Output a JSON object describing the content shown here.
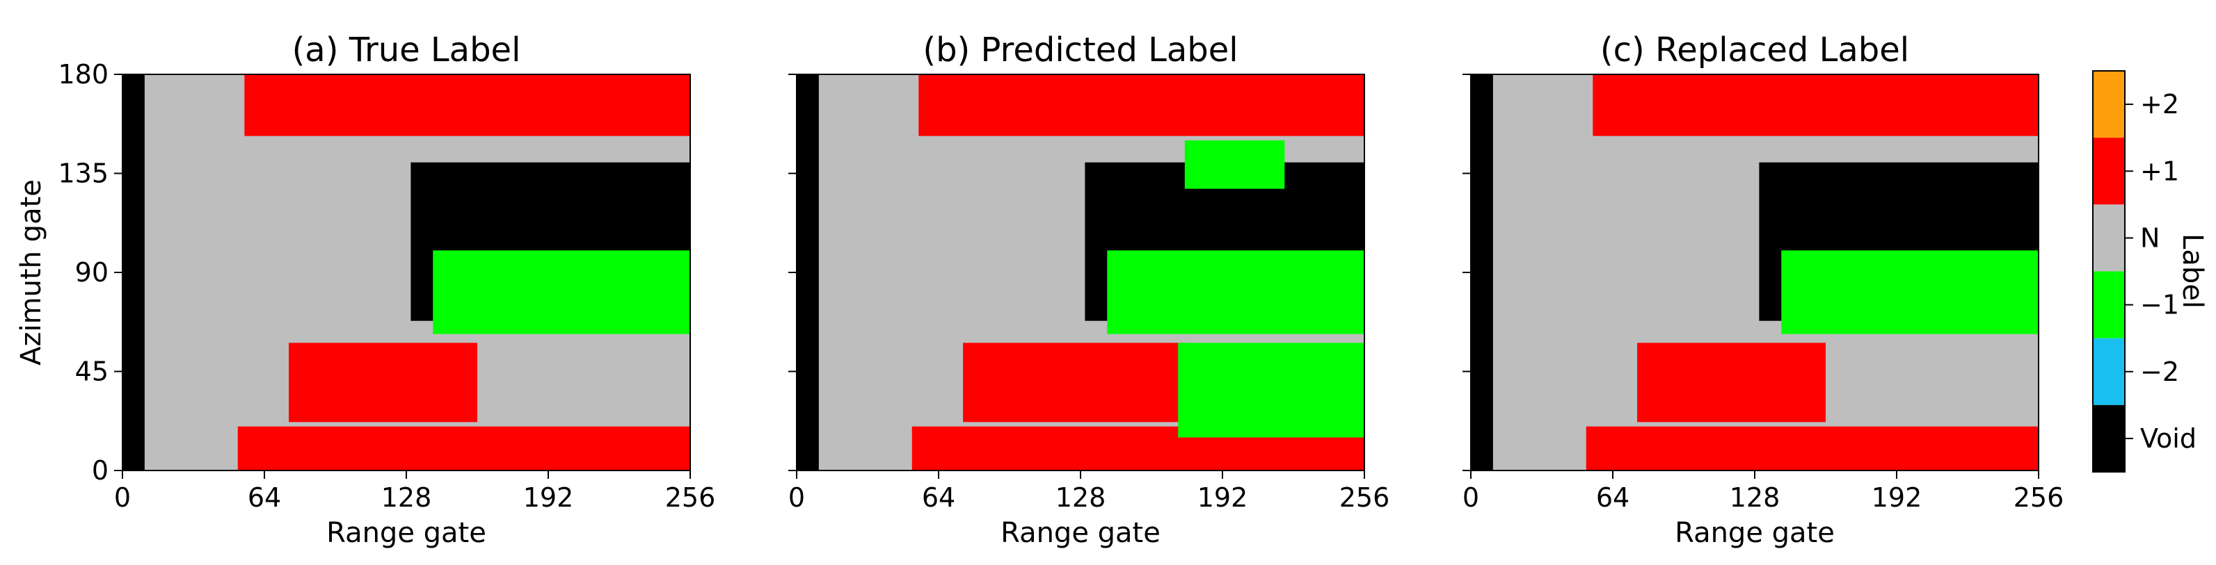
{
  "chart_data": [
    {
      "type": "heatmap",
      "title": "(a) True Label",
      "xlabel": "Range gate",
      "ylabel": "Azimuth gate",
      "xlim": [
        0,
        256
      ],
      "ylim": [
        0,
        180
      ],
      "xticks": [
        0,
        64,
        128,
        192,
        256
      ],
      "yticks": [
        0,
        45,
        90,
        135,
        180
      ],
      "regions": [
        {
          "label": "N",
          "desc": "background",
          "x": [
            0,
            256
          ],
          "y": [
            0,
            180
          ]
        },
        {
          "label": "+1",
          "x": [
            52,
            256
          ],
          "y": [
            0,
            20
          ]
        },
        {
          "label": "+1",
          "x": [
            75,
            160
          ],
          "y": [
            22,
            58
          ]
        },
        {
          "label": "+1",
          "x": [
            55,
            256
          ],
          "y": [
            152,
            180
          ]
        },
        {
          "label": "Void",
          "x": [
            0,
            10
          ],
          "y": [
            0,
            180
          ]
        },
        {
          "label": "Void",
          "x": [
            130,
            256
          ],
          "y": [
            68,
            140
          ]
        },
        {
          "label": "-1",
          "x": [
            140,
            256
          ],
          "y": [
            62,
            100
          ]
        }
      ]
    },
    {
      "type": "heatmap",
      "title": "(b) Predicted Label",
      "xlabel": "Range gate",
      "ylabel": "",
      "xlim": [
        0,
        256
      ],
      "ylim": [
        0,
        180
      ],
      "xticks": [
        0,
        64,
        128,
        192,
        256
      ],
      "yticks": [
        0,
        45,
        90,
        135,
        180
      ],
      "regions": [
        {
          "label": "N",
          "x": [
            0,
            256
          ],
          "y": [
            0,
            180
          ]
        },
        {
          "label": "+1",
          "x": [
            52,
            256
          ],
          "y": [
            0,
            20
          ]
        },
        {
          "label": "+1",
          "x": [
            75,
            175
          ],
          "y": [
            22,
            58
          ]
        },
        {
          "label": "+1",
          "x": [
            55,
            256
          ],
          "y": [
            152,
            180
          ]
        },
        {
          "label": "Void",
          "x": [
            0,
            10
          ],
          "y": [
            0,
            180
          ]
        },
        {
          "label": "Void",
          "x": [
            130,
            256
          ],
          "y": [
            68,
            140
          ]
        },
        {
          "label": "-1",
          "x": [
            172,
            256
          ],
          "y": [
            15,
            58
          ]
        },
        {
          "label": "-1",
          "x": [
            175,
            220
          ],
          "y": [
            128,
            150
          ]
        },
        {
          "label": "-1",
          "x": [
            140,
            256
          ],
          "y": [
            62,
            100
          ]
        }
      ]
    },
    {
      "type": "heatmap",
      "title": "(c) Replaced Label",
      "xlabel": "Range gate",
      "ylabel": "",
      "xlim": [
        0,
        256
      ],
      "ylim": [
        0,
        180
      ],
      "xticks": [
        0,
        64,
        128,
        192,
        256
      ],
      "yticks": [
        0,
        45,
        90,
        135,
        180
      ],
      "regions": [
        {
          "label": "N",
          "x": [
            0,
            256
          ],
          "y": [
            0,
            180
          ]
        },
        {
          "label": "+1",
          "x": [
            52,
            256
          ],
          "y": [
            0,
            20
          ]
        },
        {
          "label": "+1",
          "x": [
            75,
            160
          ],
          "y": [
            22,
            58
          ]
        },
        {
          "label": "+1",
          "x": [
            55,
            256
          ],
          "y": [
            152,
            180
          ]
        },
        {
          "label": "Void",
          "x": [
            0,
            10
          ],
          "y": [
            0,
            180
          ]
        },
        {
          "label": "Void",
          "x": [
            130,
            256
          ],
          "y": [
            68,
            140
          ]
        },
        {
          "label": "-1",
          "x": [
            140,
            256
          ],
          "y": [
            62,
            100
          ]
        }
      ]
    }
  ],
  "colorbar": {
    "label": "Label",
    "ticks": [
      "+2",
      "+1",
      "N",
      "−1",
      "−2",
      "Void"
    ],
    "colors": [
      "#ff9f0e",
      "#ff0000",
      "#bebebe",
      "#00ff00",
      "#19bff0",
      "#000000"
    ]
  }
}
